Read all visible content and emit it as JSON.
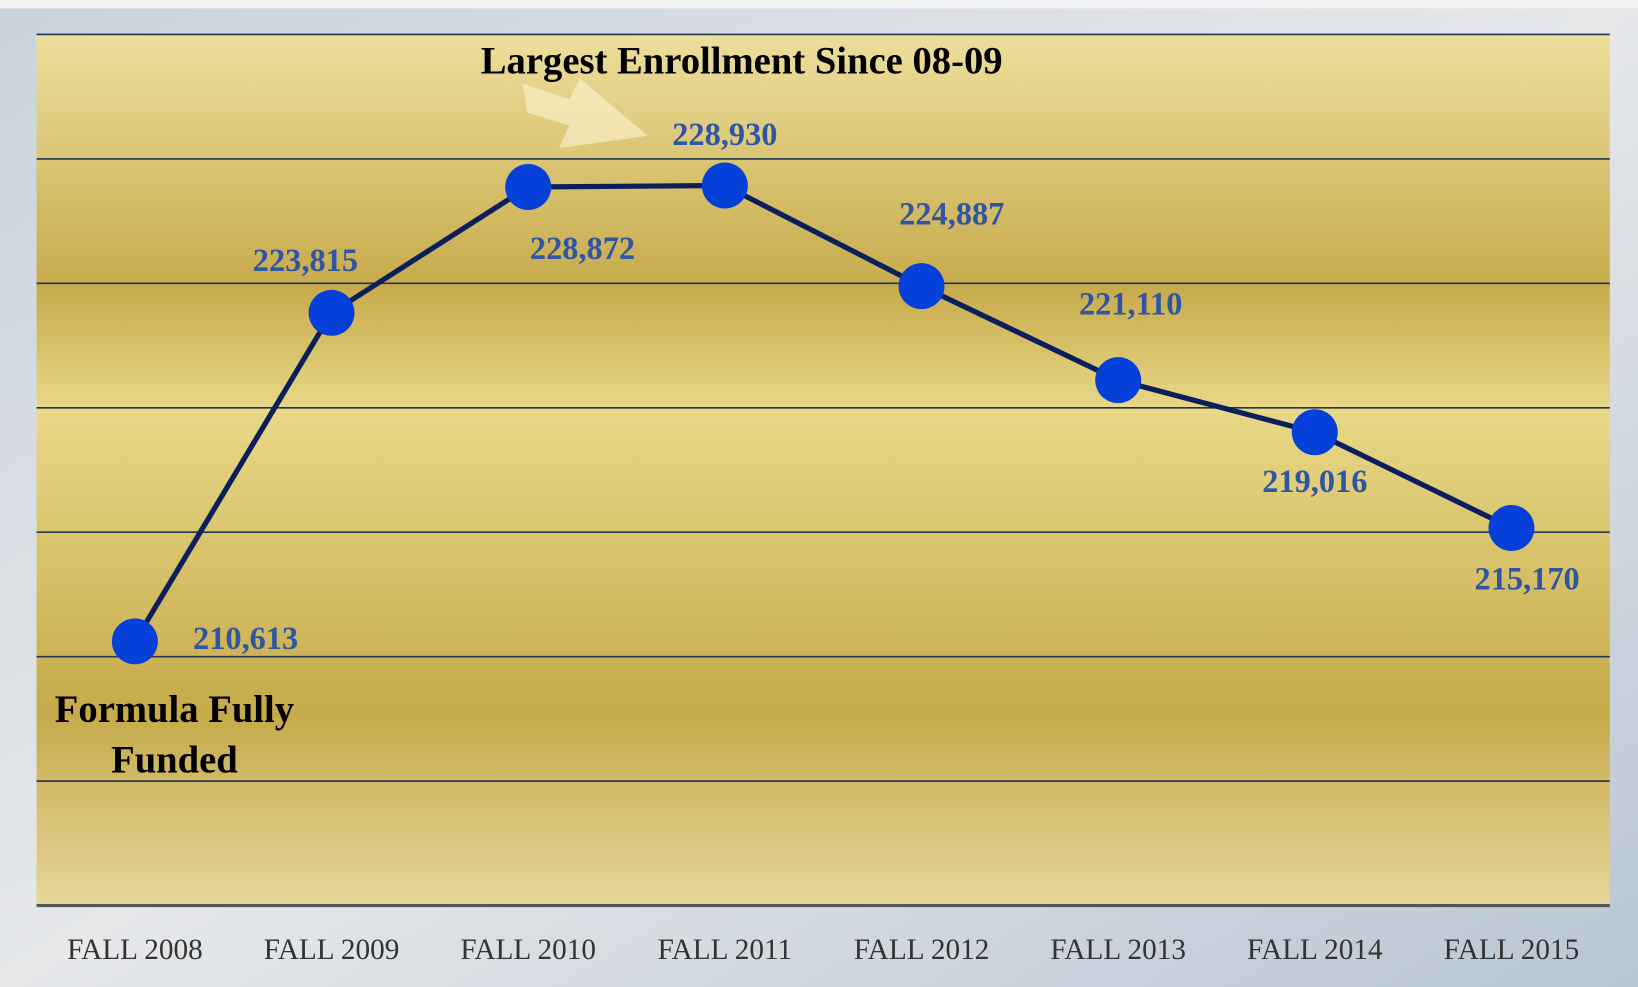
{
  "chart_data": {
    "type": "line",
    "categories": [
      "FALL 2008",
      "FALL 2009",
      "FALL 2010",
      "FALL 2011",
      "FALL 2012",
      "FALL 2013",
      "FALL 2014",
      "FALL 2015"
    ],
    "series": [
      {
        "color": "#0a1f5c",
        "marker_color": "#0540d8",
        "values": [
          210613,
          223815,
          228872,
          228930,
          224887,
          221110,
          219016,
          215170
        ],
        "value_labels": [
          "210,613",
          "223,815",
          "228,872",
          "228,930",
          "224,887",
          "221,110",
          "219,016",
          "215,170"
        ]
      }
    ],
    "ylim": [
      200000,
      235000
    ],
    "yticks": [
      200000,
      205000,
      210000,
      215000,
      220000,
      225000,
      230000,
      235000
    ],
    "grid": true,
    "annotations": [
      {
        "lines": [
          "Largest Enrollment Since 08-09"
        ]
      },
      {
        "lines": [
          "Formula Fully",
          "Funded"
        ]
      }
    ]
  }
}
